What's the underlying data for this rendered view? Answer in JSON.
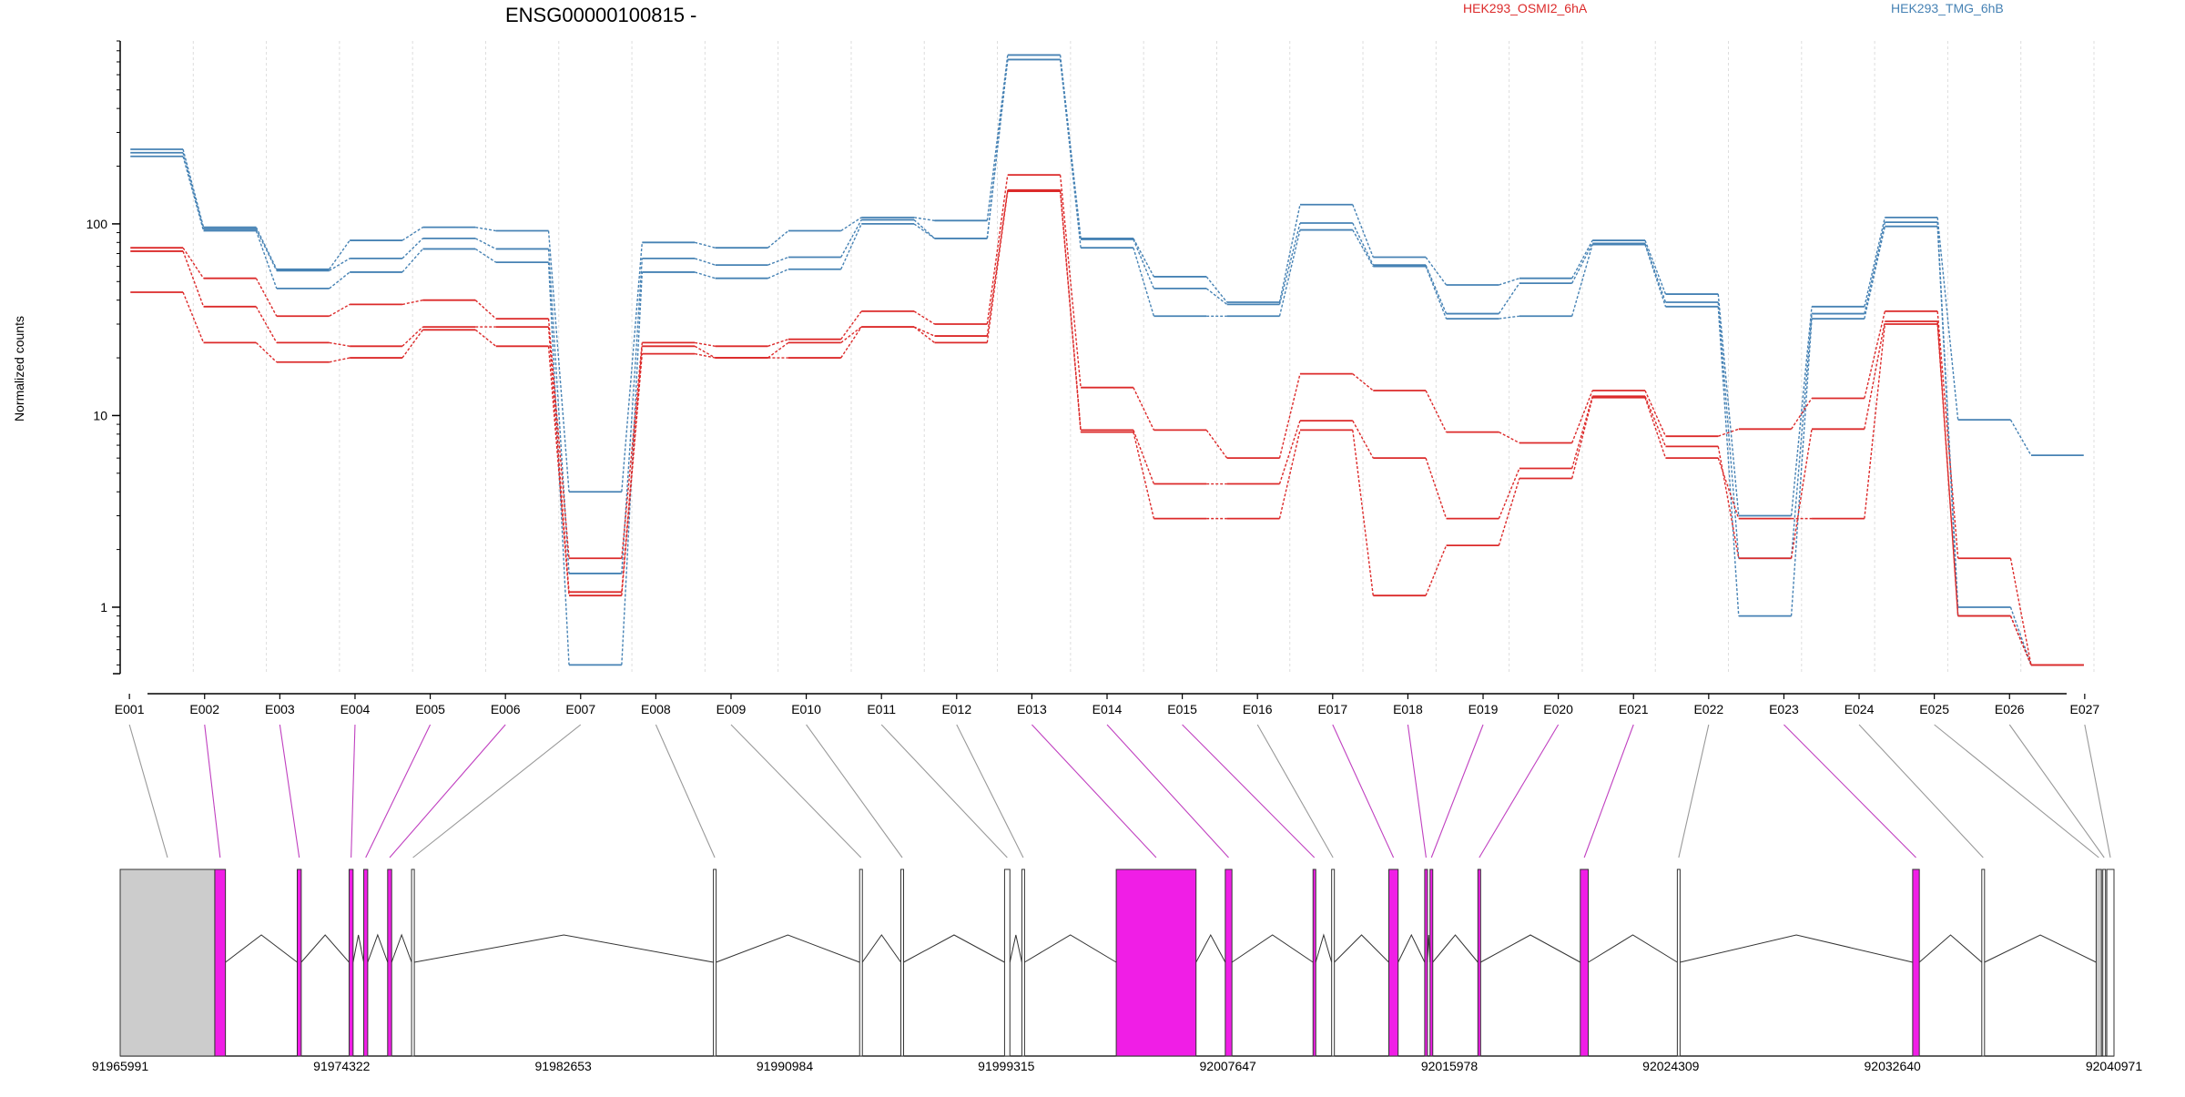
{
  "chart_data": {
    "type": "line",
    "title": "ENSG00000100815 -",
    "xlabel": "",
    "ylabel": "Normalized counts",
    "y_scale": "log",
    "ylim": [
      0.45,
      900
    ],
    "y_ticks": [
      1,
      10,
      100
    ],
    "y_tick_labels": [
      "1",
      "10",
      "100"
    ],
    "grid": "vertical dashed lines at exon boundaries",
    "legend_position": "top",
    "categories": [
      "E001",
      "E002",
      "E003",
      "E004",
      "E005",
      "E006",
      "E007",
      "E008",
      "E009",
      "E010",
      "E011",
      "E012",
      "E013",
      "E014",
      "E015",
      "E016",
      "E017",
      "E018",
      "E019",
      "E020",
      "E021",
      "E022",
      "E023",
      "E024",
      "E025",
      "E026",
      "E027"
    ],
    "series": [
      {
        "name": "",
        "group": "HEK293_TMG_6hB",
        "color": "#4682b4",
        "values": [
          245,
          96,
          58,
          82,
          96,
          92,
          4.0,
          80,
          75,
          92,
          108,
          104,
          760,
          84,
          53,
          39,
          126,
          67,
          48,
          52,
          82,
          43,
          3.0,
          37,
          108,
          9.5,
          6.2
        ]
      },
      {
        "name": "",
        "group": "HEK293_TMG_6hB",
        "color": "#4682b4",
        "values": [
          235,
          94,
          57,
          66,
          84,
          74,
          1.5,
          66,
          61,
          67,
          105,
          84,
          720,
          83,
          46,
          38,
          101,
          61,
          34,
          49,
          79,
          39,
          1.8,
          34,
          102,
          1.0,
          0.5
        ]
      },
      {
        "name": "",
        "group": "HEK293_TMG_6hB",
        "color": "#4682b4",
        "values": [
          225,
          92,
          46,
          56,
          74,
          63,
          0.5,
          56,
          52,
          58,
          100,
          84,
          720,
          75,
          33,
          33,
          93,
          60,
          32,
          33,
          78,
          37,
          0.9,
          32,
          97,
          0.9,
          0.5
        ]
      },
      {
        "name": "",
        "group": "HEK293_OSMI2_6hA",
        "color": "#dc2a2a",
        "values": [
          75,
          52,
          33,
          38,
          40,
          32,
          1.8,
          24,
          23,
          25,
          35,
          30,
          180,
          14,
          8.4,
          6.0,
          16.5,
          13.5,
          8.2,
          7.2,
          13.5,
          7.8,
          8.5,
          12.3,
          35,
          1.8,
          0.5
        ]
      },
      {
        "name": "",
        "group": "HEK293_OSMI2_6hA",
        "color": "#dc2a2a",
        "values": [
          72,
          37,
          24,
          23,
          29,
          29,
          1.2,
          23,
          20,
          24,
          29,
          26,
          150,
          8.4,
          4.4,
          4.4,
          9.4,
          6.0,
          2.9,
          5.3,
          12.6,
          6.9,
          1.8,
          8.5,
          31,
          0.9,
          0.5
        ]
      },
      {
        "name": "",
        "group": "HEK293_OSMI2_6hA",
        "color": "#dc2a2a",
        "values": [
          44,
          24,
          19,
          20,
          28,
          23,
          1.15,
          21,
          20,
          20,
          29,
          24,
          148,
          8.2,
          2.9,
          2.9,
          8.4,
          1.15,
          2.1,
          4.7,
          12.4,
          6.0,
          2.9,
          2.9,
          30,
          0.9,
          0.5
        ]
      }
    ],
    "legend": [
      {
        "label": "HEK293_OSMI2_6hA",
        "color": "#dc2a2a"
      },
      {
        "label": "HEK293_TMG_6hB",
        "color": "#4682b4"
      }
    ],
    "gene_model": {
      "coordinate_ticks": [
        "91965991",
        "91974322",
        "91982653",
        "91990984",
        "91999315",
        "92007647",
        "92015978",
        "92024309",
        "92032640",
        "92040971"
      ],
      "coord_range": [
        91965991,
        92040971
      ],
      "exons": [
        {
          "id": "E001",
          "start": 91965991,
          "end": 91969550,
          "highlight": false,
          "utr": true
        },
        {
          "id": "E002",
          "start": 91969550,
          "end": 91969950,
          "highlight": true
        },
        {
          "id": "E003",
          "start": 91972650,
          "end": 91972800,
          "highlight": true
        },
        {
          "id": "E004",
          "start": 91974600,
          "end": 91974750,
          "highlight": true
        },
        {
          "id": "E005",
          "start": 91975150,
          "end": 91975300,
          "highlight": true
        },
        {
          "id": "E006",
          "start": 91976050,
          "end": 91976200,
          "highlight": true
        },
        {
          "id": "E007",
          "start": 91976950,
          "end": 91977050,
          "highlight": false
        },
        {
          "id": "E008",
          "start": 91988300,
          "end": 91988400,
          "highlight": false
        },
        {
          "id": "E009",
          "start": 91993800,
          "end": 91993900,
          "highlight": false
        },
        {
          "id": "E010",
          "start": 91995350,
          "end": 91995450,
          "highlight": false
        },
        {
          "id": "E011",
          "start": 91999250,
          "end": 91999450,
          "highlight": false
        },
        {
          "id": "E012",
          "start": 91999900,
          "end": 92000000,
          "highlight": false
        },
        {
          "id": "E013",
          "start": 92003450,
          "end": 92006450,
          "highlight": true
        },
        {
          "id": "E014",
          "start": 92007550,
          "end": 92007800,
          "highlight": true
        },
        {
          "id": "E015",
          "start": 92010850,
          "end": 92010950,
          "highlight": true
        },
        {
          "id": "E016",
          "start": 92011550,
          "end": 92011650,
          "highlight": false
        },
        {
          "id": "E017",
          "start": 92013700,
          "end": 92014050,
          "highlight": true
        },
        {
          "id": "E018",
          "start": 92015050,
          "end": 92015150,
          "highlight": true
        },
        {
          "id": "E019",
          "start": 92015250,
          "end": 92015350,
          "highlight": true
        },
        {
          "id": "E020",
          "start": 92017050,
          "end": 92017150,
          "highlight": true
        },
        {
          "id": "E021",
          "start": 92020900,
          "end": 92021200,
          "highlight": true
        },
        {
          "id": "E022",
          "start": 92024550,
          "end": 92024650,
          "highlight": false
        },
        {
          "id": "E023",
          "start": 92033400,
          "end": 92033650,
          "highlight": true
        },
        {
          "id": "E024",
          "start": 92036000,
          "end": 92036100,
          "highlight": false
        },
        {
          "id": "E025",
          "start": 92040300,
          "end": 92040500,
          "highlight": false
        },
        {
          "id": "E026",
          "start": 92040550,
          "end": 92040650,
          "highlight": false
        },
        {
          "id": "E027",
          "start": 92040700,
          "end": 92040971,
          "highlight": false
        }
      ]
    }
  }
}
